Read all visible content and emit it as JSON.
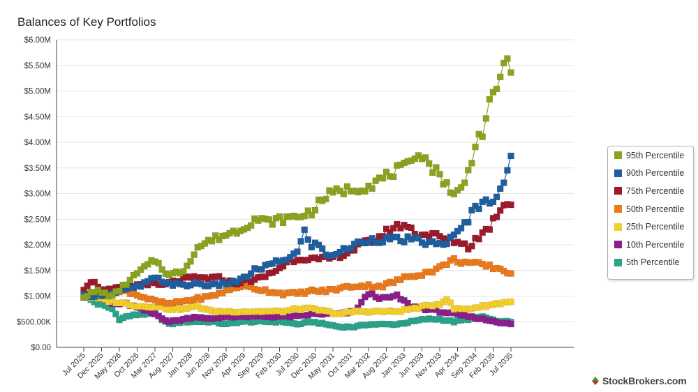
{
  "chart_data": {
    "type": "line",
    "title": "Balances of Key Portfolios",
    "xlabel": "",
    "ylabel": "",
    "ylim": [
      0,
      6000000
    ],
    "y_ticks": [
      "$0.00",
      "$500.00K",
      "$1.00M",
      "$1.50M",
      "$2.00M",
      "$2.50M",
      "$3.00M",
      "$3.50M",
      "$4.00M",
      "$4.50M",
      "$5.00M",
      "$5.50M",
      "$6.00M"
    ],
    "x_ticks": [
      "Jul 2025",
      "Dec 2025",
      "May 2026",
      "Oct 2026",
      "Mar 2027",
      "Aug 2027",
      "Jan 2028",
      "Jun 2028",
      "Nov 2028",
      "Apr 2029",
      "Sep 2029",
      "Feb 2030",
      "Jul 2030",
      "Dec 2030",
      "May 2031",
      "Oct 2031",
      "Mar 2032",
      "Aug 2032",
      "Jan 2033",
      "Jun 2033",
      "Nov 2033",
      "Apr 2034",
      "Sep 2034",
      "Feb 2035",
      "Jul 2035"
    ],
    "grid": true,
    "legend_position": "right",
    "series": [
      {
        "name": "95th Percentile",
        "color": "#8aa41f",
        "knots": [
          [
            0,
            1000000
          ],
          [
            4,
            1100000
          ],
          [
            8,
            1000000
          ],
          [
            12,
            1250000
          ],
          [
            16,
            1500000
          ],
          [
            20,
            1700000
          ],
          [
            24,
            1400000
          ],
          [
            28,
            1500000
          ],
          [
            32,
            1950000
          ],
          [
            36,
            2100000
          ],
          [
            40,
            2200000
          ],
          [
            44,
            2300000
          ],
          [
            48,
            2500000
          ],
          [
            52,
            2450000
          ],
          [
            56,
            2500000
          ],
          [
            60,
            2550000
          ],
          [
            64,
            2650000
          ],
          [
            68,
            2950000
          ],
          [
            72,
            3050000
          ],
          [
            76,
            3100000
          ],
          [
            80,
            3150000
          ],
          [
            84,
            3300000
          ],
          [
            88,
            3450000
          ],
          [
            92,
            3550000
          ],
          [
            94,
            3850000
          ],
          [
            98,
            3500000
          ],
          [
            102,
            3200000
          ],
          [
            104,
            2950000
          ],
          [
            106,
            3100000
          ],
          [
            108,
            3400000
          ],
          [
            110,
            4000000
          ],
          [
            112,
            4200000
          ],
          [
            114,
            4700000
          ],
          [
            116,
            5000000
          ],
          [
            118,
            5650000
          ],
          [
            120,
            5300000
          ],
          [
            122,
            5300000
          ],
          [
            124,
            4750000
          ],
          [
            126,
            4450000
          ],
          [
            120,
            4400000
          ]
        ]
      },
      {
        "name": "90th Percentile",
        "color": "#1f5fa0",
        "knots": [
          [
            0,
            1000000
          ],
          [
            8,
            1050000
          ],
          [
            16,
            1200000
          ],
          [
            20,
            1350000
          ],
          [
            24,
            1250000
          ],
          [
            28,
            1200000
          ],
          [
            32,
            1250000
          ],
          [
            36,
            1200000
          ],
          [
            40,
            1250000
          ],
          [
            44,
            1300000
          ],
          [
            48,
            1500000
          ],
          [
            52,
            1600000
          ],
          [
            56,
            1700000
          ],
          [
            60,
            1850000
          ],
          [
            62,
            2250000
          ],
          [
            64,
            2000000
          ],
          [
            66,
            2000000
          ],
          [
            68,
            1800000
          ],
          [
            72,
            1850000
          ],
          [
            76,
            2000000
          ],
          [
            80,
            2100000
          ],
          [
            84,
            2100000
          ],
          [
            88,
            2100000
          ],
          [
            92,
            2100000
          ],
          [
            96,
            2050000
          ],
          [
            100,
            2000000
          ],
          [
            104,
            2150000
          ],
          [
            106,
            2300000
          ],
          [
            108,
            2500000
          ],
          [
            110,
            2750000
          ],
          [
            114,
            2850000
          ],
          [
            116,
            3000000
          ],
          [
            118,
            3250000
          ],
          [
            120,
            3650000
          ],
          [
            122,
            3500000
          ],
          [
            124,
            3650000
          ],
          [
            126,
            3750000
          ],
          [
            128,
            3400000
          ],
          [
            129,
            3450000
          ]
        ]
      },
      {
        "name": "75th Percentile",
        "color": "#9b1b2c",
        "knots": [
          [
            0,
            1150000
          ],
          [
            2,
            1300000
          ],
          [
            4,
            1200000
          ],
          [
            6,
            1100000
          ],
          [
            10,
            1150000
          ],
          [
            14,
            1200000
          ],
          [
            18,
            1250000
          ],
          [
            22,
            1200000
          ],
          [
            26,
            1300000
          ],
          [
            30,
            1350000
          ],
          [
            34,
            1350000
          ],
          [
            38,
            1350000
          ],
          [
            42,
            1250000
          ],
          [
            46,
            1300000
          ],
          [
            50,
            1350000
          ],
          [
            54,
            1500000
          ],
          [
            58,
            1700000
          ],
          [
            62,
            1750000
          ],
          [
            66,
            1700000
          ],
          [
            70,
            1750000
          ],
          [
            74,
            1850000
          ],
          [
            78,
            2000000
          ],
          [
            82,
            2100000
          ],
          [
            86,
            2300000
          ],
          [
            90,
            2400000
          ],
          [
            94,
            2200000
          ],
          [
            98,
            2200000
          ],
          [
            102,
            2100000
          ],
          [
            106,
            2050000
          ],
          [
            108,
            1950000
          ],
          [
            110,
            2100000
          ],
          [
            114,
            2350000
          ],
          [
            116,
            2600000
          ],
          [
            118,
            2800000
          ],
          [
            120,
            2850000
          ],
          [
            122,
            3000000
          ],
          [
            124,
            2500000
          ],
          [
            126,
            2400000
          ],
          [
            128,
            2350000
          ],
          [
            129,
            2350000
          ]
        ]
      },
      {
        "name": "50th Percentile",
        "color": "#ea7a1c",
        "knots": [
          [
            0,
            1000000
          ],
          [
            4,
            1100000
          ],
          [
            8,
            1050000
          ],
          [
            12,
            1100000
          ],
          [
            16,
            1000000
          ],
          [
            20,
            900000
          ],
          [
            24,
            850000
          ],
          [
            28,
            900000
          ],
          [
            32,
            950000
          ],
          [
            36,
            1000000
          ],
          [
            40,
            1100000
          ],
          [
            44,
            1200000
          ],
          [
            48,
            1150000
          ],
          [
            52,
            1100000
          ],
          [
            56,
            1050000
          ],
          [
            60,
            1050000
          ],
          [
            64,
            1100000
          ],
          [
            68,
            1100000
          ],
          [
            72,
            1150000
          ],
          [
            76,
            1200000
          ],
          [
            80,
            1200000
          ],
          [
            84,
            1200000
          ],
          [
            88,
            1300000
          ],
          [
            92,
            1400000
          ],
          [
            96,
            1450000
          ],
          [
            100,
            1550000
          ],
          [
            102,
            1650000
          ],
          [
            104,
            1700000
          ],
          [
            108,
            1650000
          ],
          [
            112,
            1600000
          ],
          [
            116,
            1550000
          ],
          [
            120,
            1450000
          ],
          [
            124,
            1500000
          ],
          [
            128,
            1500000
          ],
          [
            129,
            1450000
          ]
        ]
      },
      {
        "name": "25th Percentile",
        "color": "#f3cf2d",
        "knots": [
          [
            0,
            1000000
          ],
          [
            4,
            950000
          ],
          [
            8,
            900000
          ],
          [
            12,
            850000
          ],
          [
            16,
            800000
          ],
          [
            20,
            800000
          ],
          [
            24,
            750000
          ],
          [
            28,
            750000
          ],
          [
            32,
            800000
          ],
          [
            36,
            700000
          ],
          [
            40,
            700000
          ],
          [
            44,
            700000
          ],
          [
            48,
            700000
          ],
          [
            52,
            700000
          ],
          [
            56,
            700000
          ],
          [
            60,
            750000
          ],
          [
            64,
            750000
          ],
          [
            68,
            700000
          ],
          [
            72,
            650000
          ],
          [
            76,
            700000
          ],
          [
            80,
            700000
          ],
          [
            84,
            700000
          ],
          [
            88,
            700000
          ],
          [
            92,
            750000
          ],
          [
            96,
            800000
          ],
          [
            100,
            850000
          ],
          [
            102,
            950000
          ],
          [
            104,
            750000
          ],
          [
            108,
            750000
          ],
          [
            112,
            800000
          ],
          [
            116,
            850000
          ],
          [
            120,
            900000
          ],
          [
            124,
            950000
          ],
          [
            128,
            1000000
          ],
          [
            129,
            1000000
          ]
        ]
      },
      {
        "name": "10th Percentile",
        "color": "#8b1f8b",
        "knots": [
          [
            0,
            1000000
          ],
          [
            4,
            1000000
          ],
          [
            8,
            850000
          ],
          [
            12,
            850000
          ],
          [
            16,
            750000
          ],
          [
            20,
            650000
          ],
          [
            24,
            500000
          ],
          [
            28,
            550000
          ],
          [
            32,
            600000
          ],
          [
            36,
            550000
          ],
          [
            40,
            600000
          ],
          [
            44,
            600000
          ],
          [
            48,
            600000
          ],
          [
            52,
            600000
          ],
          [
            56,
            600000
          ],
          [
            60,
            600000
          ],
          [
            64,
            650000
          ],
          [
            68,
            650000
          ],
          [
            72,
            650000
          ],
          [
            76,
            700000
          ],
          [
            80,
            1050000
          ],
          [
            84,
            950000
          ],
          [
            88,
            1000000
          ],
          [
            92,
            800000
          ],
          [
            96,
            750000
          ],
          [
            100,
            700000
          ],
          [
            104,
            650000
          ],
          [
            108,
            600000
          ],
          [
            112,
            550000
          ],
          [
            116,
            500000
          ],
          [
            120,
            450000
          ],
          [
            124,
            550000
          ],
          [
            128,
            650000
          ],
          [
            129,
            700000
          ]
        ]
      },
      {
        "name": "5th Percentile",
        "color": "#2aa38a",
        "knots": [
          [
            0,
            1000000
          ],
          [
            4,
            850000
          ],
          [
            8,
            750000
          ],
          [
            10,
            550000
          ],
          [
            12,
            600000
          ],
          [
            16,
            650000
          ],
          [
            20,
            650000
          ],
          [
            24,
            450000
          ],
          [
            28,
            500000
          ],
          [
            32,
            500000
          ],
          [
            36,
            500000
          ],
          [
            40,
            450000
          ],
          [
            44,
            500000
          ],
          [
            48,
            500000
          ],
          [
            52,
            500000
          ],
          [
            56,
            500000
          ],
          [
            60,
            450000
          ],
          [
            64,
            500000
          ],
          [
            68,
            450000
          ],
          [
            72,
            400000
          ],
          [
            76,
            400000
          ],
          [
            80,
            450000
          ],
          [
            84,
            450000
          ],
          [
            88,
            450000
          ],
          [
            92,
            500000
          ],
          [
            96,
            550000
          ],
          [
            100,
            550000
          ],
          [
            104,
            500000
          ],
          [
            108,
            550000
          ],
          [
            112,
            600000
          ],
          [
            116,
            500000
          ],
          [
            120,
            500000
          ],
          [
            124,
            550000
          ],
          [
            128,
            550000
          ],
          [
            129,
            550000
          ]
        ]
      }
    ]
  },
  "watermark": {
    "text": "StockBrokers.com"
  }
}
